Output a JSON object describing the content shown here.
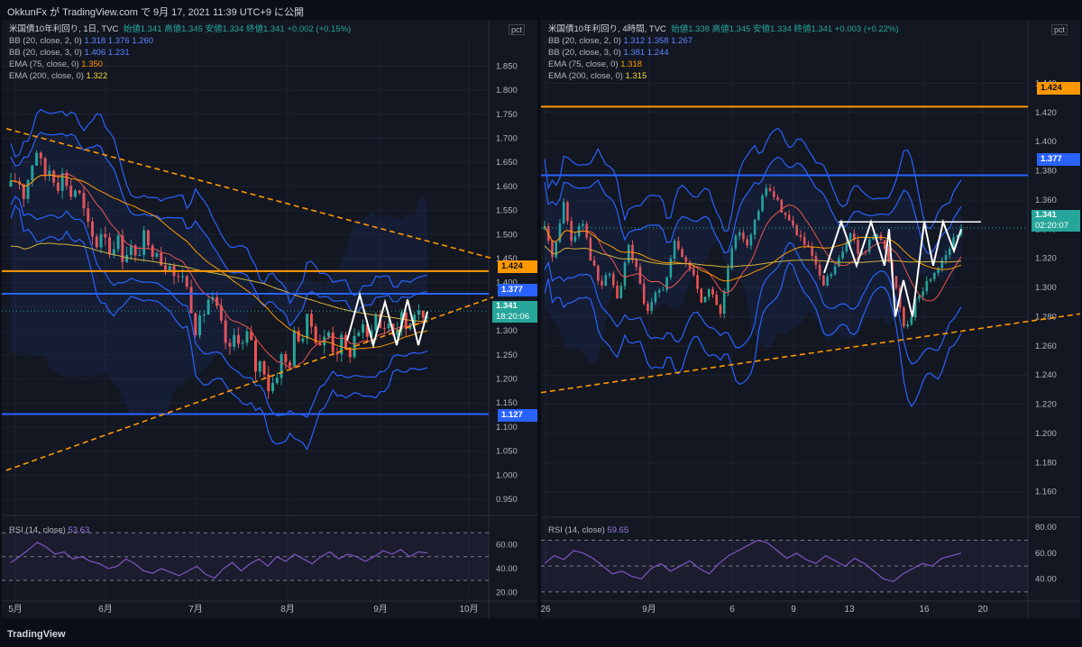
{
  "header": {
    "text": "OkkunFx が TradingView.com で 9月 17, 2021 11:39 UTC+9 に公開"
  },
  "footer": {
    "logo": "TradingView"
  },
  "colors": {
    "bg": "#131722",
    "up": "#26a69a",
    "down": "#ef5350",
    "bb": "#2962ff",
    "ema75": "#ff9800",
    "ema200": "#d4b23a",
    "hline_orange": "#ff9800",
    "hline_blue": "#2962ff",
    "rsi": "#7e57c2",
    "pattern": "#ffffff"
  },
  "left": {
    "legend": {
      "title": "米国債10年利回り, 1日, TVC",
      "ohlc": "始値1.341  高値1.345  安値1.334  終値1.341  +0.002 (+0.15%)",
      "bb1_label": "BB (20, close, 2, 0)",
      "bb1_vals": "1.318  1.376  1.260",
      "bb2_label": "BB (20, close, 3, 0)",
      "bb2_vals": "1.406  1.231",
      "ema75_label": "EMA (75, close, 0)",
      "ema75_val": "1.350",
      "ema200_label": "EMA (200, close, 0)",
      "ema200_val": "1.322"
    },
    "axis_unit": "pct",
    "price_pills": {
      "orange": "1.424",
      "blue1": "1.377",
      "cur": "1.341",
      "cur_time": "18:20:06",
      "blue2": "1.127"
    },
    "rsi_label": "RSI (14, close)",
    "rsi_val": "53.63",
    "rsi_ticks": [
      "60.00",
      "40.00",
      "20.00"
    ]
  },
  "right": {
    "legend": {
      "title": "米国債10年利回り, 4時間, TVC",
      "ohlc": "始値1.338  高値1.345  安値1.334  終値1.341  +0.003 (+0.22%)",
      "bb1_label": "BB (20, close, 2, 0)",
      "bb1_vals": "1.312  1.358  1.267",
      "bb2_label": "BB (20, close, 3, 0)",
      "bb2_vals": "1.381  1.244",
      "ema75_label": "EMA (75, close, 0)",
      "ema75_val": "1.318",
      "ema200_label": "EMA (200, close, 0)",
      "ema200_val": "1.315"
    },
    "axis_unit": "pct",
    "price_pills": {
      "orange": "1.424",
      "blue1": "1.377",
      "cur": "1.341",
      "cur_time": "02:20:07"
    },
    "rsi_label": "RSI (14, close)",
    "rsi_val": "59.65",
    "rsi_ticks": [
      "80.00",
      "60.00",
      "40.00"
    ]
  },
  "chart_data": [
    {
      "type": "candlestick",
      "title": "米国債10年利回り, 1日, TVC",
      "yticks": [
        0.95,
        1.0,
        1.05,
        1.1,
        1.15,
        1.2,
        1.25,
        1.3,
        1.35,
        1.4,
        1.45,
        1.5,
        1.55,
        1.6,
        1.65,
        1.7,
        1.75,
        1.8,
        1.85
      ],
      "ylim": [
        0.92,
        1.89
      ],
      "x_labels": [
        "5月",
        "6月",
        "7月",
        "8月",
        "9月",
        "10月"
      ],
      "hlines": [
        {
          "value": 1.424,
          "color": "orange"
        },
        {
          "value": 1.377,
          "color": "blue"
        },
        {
          "value": 1.127,
          "color": "blue"
        }
      ],
      "close_path": [
        1.6,
        1.62,
        1.58,
        1.64,
        1.68,
        1.62,
        1.64,
        1.6,
        1.63,
        1.58,
        1.6,
        1.55,
        1.5,
        1.48,
        1.52,
        1.46,
        1.5,
        1.45,
        1.48,
        1.44,
        1.5,
        1.46,
        1.48,
        1.43,
        1.45,
        1.4,
        1.42,
        1.37,
        1.3,
        1.33,
        1.37,
        1.35,
        1.3,
        1.25,
        1.3,
        1.27,
        1.3,
        1.22,
        1.24,
        1.18,
        1.2,
        1.25,
        1.22,
        1.3,
        1.28,
        1.33,
        1.29,
        1.27,
        1.3,
        1.25,
        1.28,
        1.24,
        1.29,
        1.31,
        1.28,
        1.34,
        1.3,
        1.32,
        1.29,
        1.33,
        1.3,
        1.35,
        1.32,
        1.34
      ],
      "rsi": [
        45,
        50,
        56,
        62,
        58,
        52,
        54,
        48,
        50,
        46,
        44,
        40,
        42,
        48,
        44,
        38,
        36,
        40,
        37,
        34,
        38,
        42,
        35,
        32,
        40,
        45,
        38,
        44,
        48,
        42,
        50,
        46,
        52,
        48,
        44,
        50,
        54,
        48,
        52,
        50,
        46,
        50,
        55,
        52,
        56,
        50,
        54,
        53
      ]
    },
    {
      "type": "candlestick",
      "title": "米国債10年利回り, 4時間, TVC",
      "yticks": [
        1.16,
        1.18,
        1.2,
        1.22,
        1.24,
        1.26,
        1.28,
        1.3,
        1.32,
        1.34,
        1.36,
        1.38,
        1.4,
        1.42,
        1.44
      ],
      "ylim": [
        1.145,
        1.465
      ],
      "x_labels": [
        "26",
        "9月",
        "6",
        "9",
        "13",
        "16",
        "20"
      ],
      "hlines": [
        {
          "value": 1.424,
          "color": "orange"
        },
        {
          "value": 1.377,
          "color": "blue"
        }
      ],
      "close_path": [
        1.34,
        1.32,
        1.36,
        1.33,
        1.35,
        1.32,
        1.3,
        1.31,
        1.29,
        1.33,
        1.31,
        1.28,
        1.3,
        1.3,
        1.33,
        1.32,
        1.31,
        1.29,
        1.3,
        1.28,
        1.32,
        1.34,
        1.33,
        1.35,
        1.37,
        1.36,
        1.35,
        1.34,
        1.33,
        1.32,
        1.3,
        1.31,
        1.32,
        1.34,
        1.32,
        1.33,
        1.34,
        1.32,
        1.3,
        1.27,
        1.29,
        1.3,
        1.31,
        1.32,
        1.33,
        1.34
      ],
      "rsi": [
        52,
        58,
        55,
        62,
        60,
        56,
        50,
        44,
        46,
        42,
        40,
        48,
        52,
        46,
        50,
        54,
        48,
        44,
        52,
        58,
        62,
        66,
        70,
        68,
        62,
        56,
        60,
        55,
        52,
        58,
        54,
        50,
        56,
        52,
        46,
        40,
        38,
        44,
        48,
        52,
        50,
        56,
        58,
        60
      ]
    }
  ]
}
